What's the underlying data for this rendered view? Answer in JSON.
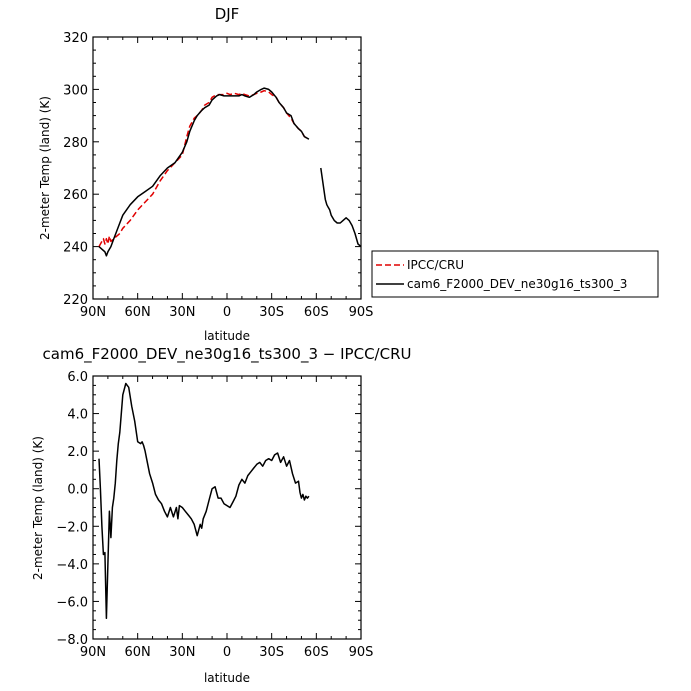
{
  "chart_data": [
    {
      "type": "line",
      "title": "DJF",
      "xlabel": "latitude",
      "ylabel": "2-meter Temp (land) (K)",
      "xlim": [
        90,
        -90
      ],
      "ylim": [
        220,
        320
      ],
      "xticks": [
        90,
        60,
        30,
        0,
        -30,
        -60,
        -90
      ],
      "xtick_labels": [
        "90N",
        "60N",
        "30N",
        "0",
        "30S",
        "60S",
        "90S"
      ],
      "yticks": [
        220,
        240,
        260,
        280,
        300,
        320
      ],
      "ytick_labels": [
        "220",
        "240",
        "260",
        "280",
        "300",
        "320"
      ],
      "grid": false,
      "legend": "outside-right",
      "series": [
        {
          "name": "IPCC/CRU",
          "color": "#e00000",
          "dash": "dashed",
          "x": [
            86,
            84,
            83,
            82,
            81,
            80,
            79,
            78,
            76,
            74,
            72,
            70,
            65,
            60,
            55,
            50,
            45,
            40,
            35,
            30,
            27,
            25,
            22,
            20,
            17,
            15,
            12,
            10,
            7,
            5,
            2,
            0,
            -2,
            -5,
            -8,
            -10,
            -12,
            -15,
            -18,
            -20,
            -23,
            -25,
            -28,
            -30,
            -33,
            -35,
            -38,
            -40,
            -43,
            -45,
            -48,
            -50,
            -52,
            -55
          ],
          "y": [
            240,
            242,
            243,
            241,
            243,
            241,
            244,
            242,
            243,
            244,
            245,
            247,
            250,
            254,
            257,
            260,
            265,
            269,
            272,
            275,
            282,
            286,
            289,
            290,
            292,
            294,
            295,
            297,
            298,
            298,
            298,
            298.5,
            298,
            298.5,
            298,
            298.5,
            298,
            297.5,
            298,
            298.5,
            299,
            299.5,
            299,
            298,
            297,
            295,
            293,
            291,
            289,
            287,
            285,
            284,
            282,
            281
          ]
        },
        {
          "name": "cam6_F2000_DEV_ne30g16_ts300_3",
          "color": "#000000",
          "dash": "solid",
          "x": [
            86,
            84,
            83,
            82,
            81,
            80,
            78,
            76,
            74,
            72,
            70,
            65,
            60,
            55,
            50,
            45,
            40,
            35,
            30,
            27,
            25,
            22,
            20,
            17,
            15,
            12,
            10,
            7,
            5,
            2,
            0,
            -2,
            -5,
            -8,
            -10,
            -12,
            -15,
            -18,
            -20,
            -23,
            -25,
            -28,
            -30,
            -33,
            -35,
            -38,
            -40,
            -43,
            -45,
            -48,
            -50,
            -52,
            -55,
            null,
            -63,
            -64,
            -65,
            -66,
            -67,
            -68,
            -69,
            -70,
            -72,
            -74,
            -76,
            -78,
            -80,
            -82,
            -84,
            -86,
            -88,
            -90
          ],
          "y": [
            240,
            239,
            238.5,
            238,
            236.5,
            238,
            240,
            243,
            246,
            249,
            252,
            256,
            259,
            261,
            263,
            267,
            270,
            272,
            276,
            280,
            284,
            288,
            290,
            292,
            293,
            294,
            296,
            297.5,
            298,
            297.5,
            297.5,
            297.5,
            297.5,
            297.5,
            298,
            297.5,
            297,
            298,
            299,
            300,
            300.5,
            300,
            299,
            297,
            295,
            293,
            291,
            290,
            287,
            285,
            284,
            282,
            281,
            null,
            270,
            266,
            262,
            258,
            256,
            255,
            254,
            252,
            250,
            249,
            249,
            250,
            251,
            250,
            248,
            245,
            241,
            240
          ]
        }
      ]
    },
    {
      "type": "line",
      "title": "cam6_F2000_DEV_ne30g16_ts300_3 − IPCC/CRU",
      "xlabel": "latitude",
      "ylabel": "2-meter Temp (land) (K)",
      "xlim": [
        90,
        -90
      ],
      "ylim": [
        -8,
        6
      ],
      "xticks": [
        90,
        60,
        30,
        0,
        -30,
        -60,
        -90
      ],
      "xtick_labels": [
        "90N",
        "60N",
        "30N",
        "0",
        "30S",
        "60S",
        "90S"
      ],
      "yticks": [
        -8,
        -6,
        -4,
        -2,
        0,
        2,
        4,
        6
      ],
      "ytick_labels": [
        "−8.0",
        "−6.0",
        "−4.0",
        "−2.0",
        "0.0",
        "2.0",
        "4.0",
        "6.0"
      ],
      "grid": false,
      "series": [
        {
          "color": "#000000",
          "x": [
            86,
            85,
            84,
            83,
            82,
            81,
            80,
            79,
            78,
            77,
            76,
            75,
            74,
            73,
            72,
            71,
            70,
            68,
            66,
            64,
            62,
            60,
            58,
            57,
            56,
            55,
            54,
            52,
            50,
            48,
            46,
            44,
            42,
            40,
            38,
            36,
            34,
            33,
            32,
            30,
            28,
            26,
            24,
            22,
            20,
            18,
            17,
            16,
            14,
            12,
            10,
            8,
            6,
            4,
            2,
            0,
            -2,
            -4,
            -6,
            -8,
            -10,
            -12,
            -14,
            -16,
            -18,
            -20,
            -22,
            -24,
            -26,
            -28,
            -30,
            -32,
            -34,
            -36,
            -38,
            -40,
            -42,
            -44,
            -46,
            -48,
            -49,
            -50,
            -51,
            -52,
            -53,
            -54,
            -55
          ],
          "y": [
            1.6,
            0,
            -2,
            -3.5,
            -3.4,
            -6.9,
            -4,
            -1.2,
            -2.6,
            -1,
            -0.5,
            0.3,
            1.5,
            2.4,
            3,
            4,
            5,
            5.6,
            5.4,
            4.4,
            3.6,
            2.5,
            2.4,
            2.5,
            2.3,
            2.0,
            1.6,
            0.8,
            0.3,
            -0.3,
            -0.6,
            -0.8,
            -1.2,
            -1.5,
            -1.0,
            -1.5,
            -1.0,
            -1.6,
            -0.9,
            -1.0,
            -1.2,
            -1.4,
            -1.6,
            -1.9,
            -2.5,
            -1.9,
            -2.1,
            -1.6,
            -1.2,
            -0.6,
            0.0,
            0.1,
            -0.5,
            -0.5,
            -0.8,
            -0.9,
            -1.0,
            -0.7,
            -0.4,
            0.2,
            0.5,
            0.3,
            0.7,
            0.9,
            1.1,
            1.3,
            1.4,
            1.2,
            1.5,
            1.6,
            1.5,
            1.8,
            1.9,
            1.4,
            1.7,
            1.2,
            1.5,
            0.8,
            0.3,
            0.4,
            -0.2,
            -0.5,
            -0.3,
            -0.6,
            -0.4,
            -0.5,
            -0.4
          ]
        }
      ]
    }
  ]
}
